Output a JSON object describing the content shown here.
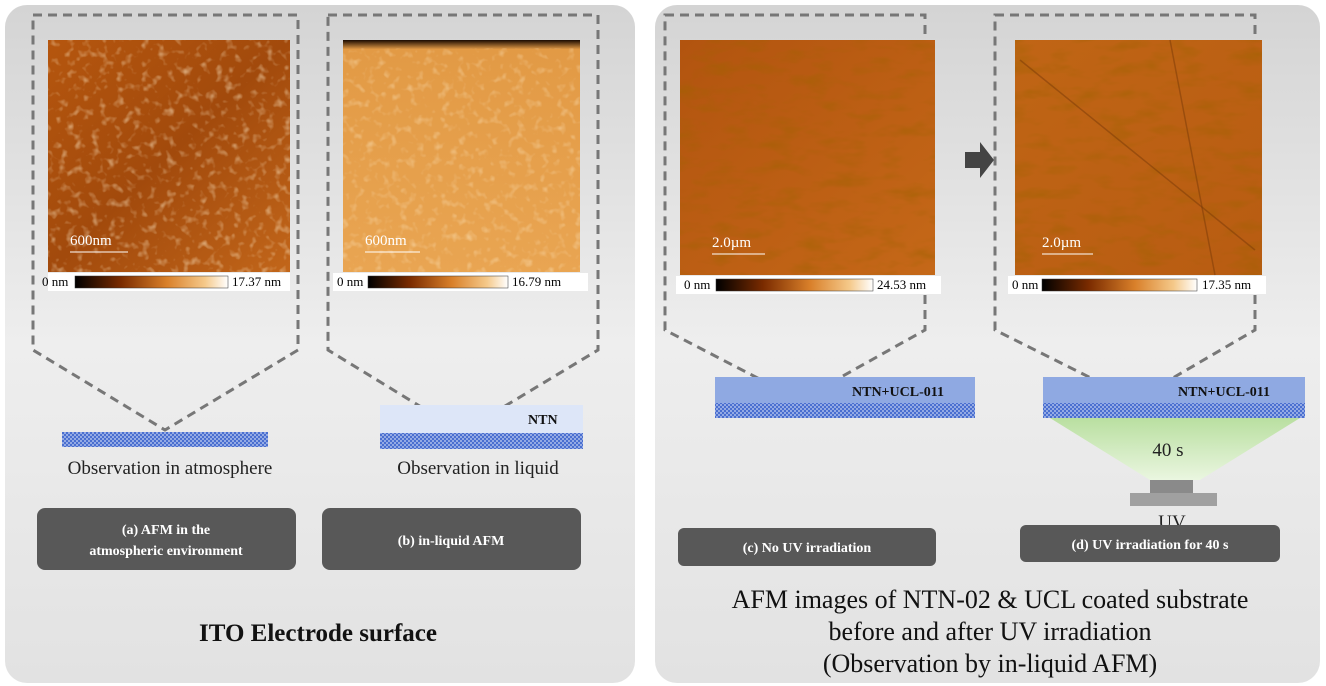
{
  "left_panel": {
    "title": "ITO Electrode  surface",
    "figures": [
      {
        "scale_bar": "600nm",
        "colorbar_min": "0 nm",
        "colorbar_max": "17.37 nm",
        "observation": "Observation in atmosphere",
        "caption_lines": [
          "(a) AFM  in the",
          "atmospheric environment"
        ]
      },
      {
        "scale_bar": "600nm",
        "colorbar_min": "0 nm",
        "colorbar_max": "16.79 nm",
        "layer_label": "NTN",
        "observation": "Observation in liquid",
        "caption_lines": [
          "(b) in-liquid AFM"
        ]
      }
    ]
  },
  "right_panel": {
    "title_lines": [
      "AFM images of NTN-02 & UCL coated substrate",
      "before and after UV irradiation",
      "(Observation by in-liquid AFM)"
    ],
    "figures": [
      {
        "scale_bar": "2.0µm",
        "colorbar_min": "0 nm",
        "colorbar_max": "24.53 nm",
        "layer_label": "NTN+UCL-011",
        "caption_lines": [
          "(c) No UV irradiation"
        ]
      },
      {
        "scale_bar": "2.0µm",
        "colorbar_min": "0 nm",
        "colorbar_max": "17.35 nm",
        "layer_label": "NTN+UCL-011",
        "exposure": "40 s",
        "light_source": "UV",
        "caption_lines": [
          "(d)  UV irradiation for 40 s"
        ]
      }
    ]
  }
}
